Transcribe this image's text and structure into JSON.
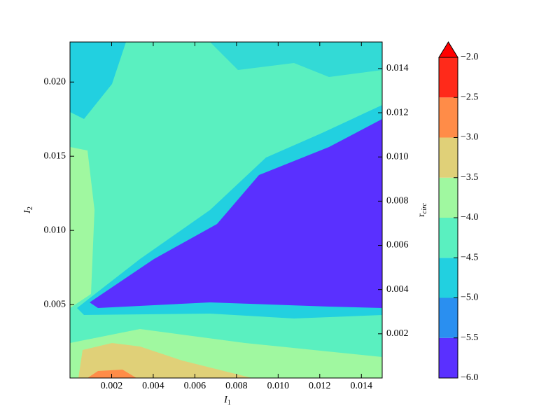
{
  "chart_data": {
    "type": "contour",
    "xlabel": {
      "base": "I",
      "sub": "1"
    },
    "ylabel": {
      "base": "I",
      "sub": "2"
    },
    "y2label": {
      "base": "r",
      "sub": "circ"
    },
    "xlim": [
      0,
      0.015
    ],
    "xticks": [
      0.002,
      0.004,
      0.006,
      0.008,
      {
        "value": 0.01,
        "label": "0.010"
      },
      0.012,
      0.014
    ],
    "ylim": [
      5e-05,
      0.0227
    ],
    "yticks": [
      0.005,
      {
        "value": 0.01,
        "label": "0.010"
      },
      0.015,
      {
        "value": 0.02,
        "label": "0.020"
      }
    ],
    "y2lim": [
      0,
      0.0152
    ],
    "y2ticks": [
      0.002,
      0.004,
      0.006,
      0.008,
      {
        "value": 0.01,
        "label": "0.010"
      },
      0.012,
      0.014
    ],
    "colorbar": {
      "levels": [
        {
          "value": -6,
          "label": "−6.0"
        },
        {
          "value": -5.5,
          "label": "−5.5"
        },
        {
          "value": -5,
          "label": "−5.0"
        },
        {
          "value": -4.5,
          "label": "−4.5"
        },
        {
          "value": -4,
          "label": "−4.0"
        },
        {
          "value": -3.5,
          "label": "−3.5"
        },
        {
          "value": -3,
          "label": "−3.0"
        },
        {
          "value": -2.5,
          "label": "−2.5"
        },
        {
          "value": -2,
          "label": "−2.0"
        }
      ],
      "colors": [
        "#5a30ff",
        "#2a8ff0",
        "#22d0e0",
        "#5af0c0",
        "#a0f8a0",
        "#e0d078",
        "#ff8c48",
        "#ff2a1a"
      ],
      "extend": "max",
      "extend_color": "#ff0000"
    }
  }
}
